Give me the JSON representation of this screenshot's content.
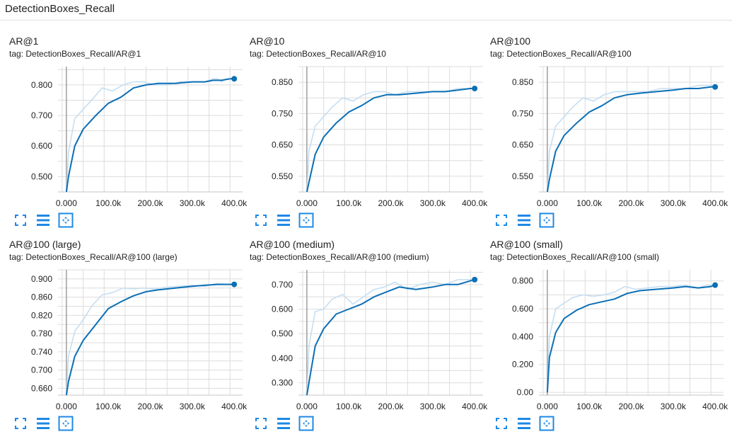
{
  "header": {
    "title": "DetectionBoxes_Recall"
  },
  "colors": {
    "smoothed": "#0b6fb5",
    "raw": "#c6def1",
    "grid": "#dcdcdc",
    "axis": "#9e9e9e",
    "button": "#1e88e5"
  },
  "icons": {
    "expand": "fullscreen-icon",
    "lines": "toggle-y-log-icon",
    "fit": "fit-domain-icon"
  },
  "chart_data": [
    {
      "type": "line",
      "title": "AR@1",
      "tag": "tag: DetectionBoxes_Recall/AR@1",
      "x_ticks": [
        0,
        100000,
        200000,
        300000,
        400000
      ],
      "x_tick_labels": [
        "0.000",
        "100.0k",
        "200.0k",
        "300.0k",
        "400.0k"
      ],
      "y_ticks": [
        0.5,
        0.6,
        0.7,
        0.8
      ],
      "y_tick_labels": [
        "0.500",
        "0.600",
        "0.700",
        "0.800"
      ],
      "xlim": [
        -20000,
        420000
      ],
      "ylim": [
        0.45,
        0.86
      ],
      "series": [
        {
          "x": [
            0,
            5000,
            20000,
            40000,
            60000,
            85000,
            110000,
            135000,
            160000,
            185000,
            210000,
            240000,
            270000,
            300000,
            330000,
            350000,
            360000,
            370000,
            380000,
            390000,
            400000
          ],
          "values": [
            0.45,
            0.58,
            0.69,
            0.72,
            0.75,
            0.79,
            0.78,
            0.8,
            0.81,
            0.81,
            0.8,
            0.8,
            0.81,
            0.81,
            0.81,
            0.82,
            0.82,
            0.81,
            0.82,
            0.82,
            0.82
          ]
        },
        {
          "x": [
            0,
            5000,
            20000,
            40000,
            70000,
            100000,
            130000,
            160000,
            190000,
            220000,
            260000,
            300000,
            330000,
            350000,
            370000,
            390000,
            400000
          ],
          "values": [
            0.45,
            0.5,
            0.6,
            0.655,
            0.7,
            0.74,
            0.76,
            0.79,
            0.8,
            0.805,
            0.805,
            0.81,
            0.81,
            0.815,
            0.815,
            0.82,
            0.82
          ]
        }
      ]
    },
    {
      "type": "line",
      "title": "AR@10",
      "tag": "tag: DetectionBoxes_Recall/AR@10",
      "x_ticks": [
        0,
        100000,
        200000,
        300000,
        400000
      ],
      "x_tick_labels": [
        "0.000",
        "100.0k",
        "200.0k",
        "300.0k",
        "400.0k"
      ],
      "y_ticks": [
        0.55,
        0.65,
        0.75,
        0.85
      ],
      "y_tick_labels": [
        "0.550",
        "0.650",
        "0.750",
        "0.850"
      ],
      "xlim": [
        -20000,
        420000
      ],
      "ylim": [
        0.5,
        0.9
      ],
      "series": [
        {
          "x": [
            0,
            5000,
            20000,
            40000,
            60000,
            85000,
            110000,
            135000,
            160000,
            185000,
            210000,
            240000,
            270000,
            300000,
            330000,
            360000,
            380000,
            400000
          ],
          "values": [
            0.5,
            0.63,
            0.71,
            0.74,
            0.77,
            0.8,
            0.79,
            0.81,
            0.82,
            0.82,
            0.81,
            0.82,
            0.82,
            0.82,
            0.82,
            0.83,
            0.83,
            0.83
          ]
        },
        {
          "x": [
            0,
            5000,
            20000,
            40000,
            70000,
            100000,
            130000,
            160000,
            190000,
            220000,
            260000,
            300000,
            330000,
            360000,
            390000,
            400000
          ],
          "values": [
            0.5,
            0.53,
            0.62,
            0.675,
            0.72,
            0.755,
            0.775,
            0.8,
            0.81,
            0.81,
            0.815,
            0.82,
            0.82,
            0.825,
            0.83,
            0.83
          ]
        }
      ]
    },
    {
      "type": "line",
      "title": "AR@100",
      "tag": "tag: DetectionBoxes_Recall/AR@100",
      "x_ticks": [
        0,
        100000,
        200000,
        300000,
        400000
      ],
      "x_tick_labels": [
        "0.000",
        "100.0k",
        "200.0k",
        "300.0k",
        "400.0k"
      ],
      "y_ticks": [
        0.55,
        0.65,
        0.75,
        0.85
      ],
      "y_tick_labels": [
        "0.550",
        "0.650",
        "0.750",
        "0.850"
      ],
      "xlim": [
        -20000,
        420000
      ],
      "ylim": [
        0.5,
        0.9
      ],
      "series": [
        {
          "x": [
            0,
            5000,
            20000,
            40000,
            60000,
            85000,
            110000,
            135000,
            160000,
            185000,
            210000,
            240000,
            270000,
            300000,
            330000,
            360000,
            380000,
            400000
          ],
          "values": [
            0.5,
            0.63,
            0.71,
            0.74,
            0.77,
            0.8,
            0.79,
            0.81,
            0.82,
            0.82,
            0.82,
            0.82,
            0.83,
            0.83,
            0.83,
            0.84,
            0.84,
            0.84
          ]
        },
        {
          "x": [
            0,
            5000,
            20000,
            40000,
            70000,
            100000,
            130000,
            160000,
            190000,
            220000,
            260000,
            300000,
            330000,
            360000,
            390000,
            400000
          ],
          "values": [
            0.5,
            0.54,
            0.63,
            0.68,
            0.72,
            0.755,
            0.775,
            0.8,
            0.81,
            0.815,
            0.82,
            0.825,
            0.83,
            0.83,
            0.835,
            0.835
          ]
        }
      ]
    },
    {
      "type": "line",
      "title": "AR@100 (large)",
      "tag": "tag: DetectionBoxes_Recall/AR@100 (large)",
      "x_ticks": [
        0,
        100000,
        200000,
        300000,
        400000
      ],
      "x_tick_labels": [
        "0.000",
        "100.0k",
        "200.0k",
        "300.0k",
        "400.0k"
      ],
      "y_ticks": [
        0.66,
        0.7,
        0.74,
        0.78,
        0.82,
        0.86,
        0.9
      ],
      "y_tick_labels": [
        "0.660",
        "0.700",
        "0.740",
        "0.780",
        "0.820",
        "0.860",
        "0.900"
      ],
      "xlim": [
        -20000,
        420000
      ],
      "ylim": [
        0.645,
        0.92
      ],
      "series": [
        {
          "x": [
            0,
            5000,
            20000,
            40000,
            60000,
            85000,
            110000,
            135000,
            160000,
            185000,
            210000,
            240000,
            270000,
            300000,
            330000,
            360000,
            380000,
            400000
          ],
          "values": [
            0.645,
            0.73,
            0.785,
            0.81,
            0.84,
            0.865,
            0.87,
            0.88,
            0.878,
            0.88,
            0.878,
            0.882,
            0.884,
            0.886,
            0.884,
            0.89,
            0.888,
            0.888
          ]
        },
        {
          "x": [
            0,
            5000,
            20000,
            40000,
            70000,
            100000,
            130000,
            160000,
            190000,
            220000,
            260000,
            300000,
            330000,
            360000,
            390000,
            400000
          ],
          "values": [
            0.645,
            0.675,
            0.73,
            0.765,
            0.8,
            0.835,
            0.85,
            0.863,
            0.872,
            0.876,
            0.88,
            0.884,
            0.886,
            0.888,
            0.888,
            0.888
          ]
        }
      ]
    },
    {
      "type": "line",
      "title": "AR@100 (medium)",
      "tag": "tag: DetectionBoxes_Recall/AR@100 (medium)",
      "x_ticks": [
        0,
        100000,
        200000,
        300000,
        400000
      ],
      "x_tick_labels": [
        "0.000",
        "100.0k",
        "200.0k",
        "300.0k",
        "400.0k"
      ],
      "y_ticks": [
        0.3,
        0.4,
        0.5,
        0.6,
        0.7
      ],
      "y_tick_labels": [
        "0.300",
        "0.400",
        "0.500",
        "0.600",
        "0.700"
      ],
      "xlim": [
        -20000,
        420000
      ],
      "ylim": [
        0.25,
        0.76
      ],
      "series": [
        {
          "x": [
            0,
            5000,
            20000,
            40000,
            60000,
            85000,
            110000,
            135000,
            160000,
            185000,
            210000,
            240000,
            270000,
            300000,
            330000,
            360000,
            380000,
            400000
          ],
          "values": [
            0.25,
            0.45,
            0.59,
            0.6,
            0.64,
            0.66,
            0.62,
            0.65,
            0.68,
            0.69,
            0.71,
            0.68,
            0.7,
            0.71,
            0.7,
            0.72,
            0.72,
            0.72
          ]
        },
        {
          "x": [
            0,
            5000,
            20000,
            40000,
            70000,
            100000,
            130000,
            160000,
            190000,
            220000,
            260000,
            300000,
            330000,
            360000,
            390000,
            400000
          ],
          "values": [
            0.25,
            0.3,
            0.45,
            0.52,
            0.58,
            0.6,
            0.62,
            0.65,
            0.67,
            0.69,
            0.68,
            0.69,
            0.7,
            0.7,
            0.715,
            0.72
          ]
        }
      ]
    },
    {
      "type": "line",
      "title": "AR@100 (small)",
      "tag": "tag: DetectionBoxes_Recall/AR@100 (small)",
      "x_ticks": [
        0,
        100000,
        200000,
        300000,
        400000
      ],
      "x_tick_labels": [
        "0.000",
        "100.0k",
        "200.0k",
        "300.0k",
        "400.0k"
      ],
      "y_ticks": [
        0,
        0.2,
        0.4,
        0.6,
        0.8
      ],
      "y_tick_labels": [
        "0.00",
        "0.200",
        "0.400",
        "0.600",
        "0.800"
      ],
      "xlim": [
        -20000,
        420000
      ],
      "ylim": [
        -0.02,
        0.88
      ],
      "series": [
        {
          "x": [
            0,
            5000,
            20000,
            40000,
            60000,
            85000,
            110000,
            135000,
            160000,
            185000,
            210000,
            240000,
            270000,
            300000,
            330000,
            360000,
            380000,
            400000
          ],
          "values": [
            0.0,
            0.4,
            0.6,
            0.64,
            0.68,
            0.7,
            0.69,
            0.7,
            0.72,
            0.76,
            0.74,
            0.75,
            0.76,
            0.76,
            0.77,
            0.75,
            0.77,
            0.77
          ]
        },
        {
          "x": [
            0,
            5000,
            20000,
            40000,
            70000,
            100000,
            130000,
            160000,
            190000,
            220000,
            260000,
            300000,
            330000,
            360000,
            390000,
            400000
          ],
          "values": [
            0.0,
            0.25,
            0.43,
            0.53,
            0.59,
            0.63,
            0.65,
            0.67,
            0.71,
            0.73,
            0.74,
            0.75,
            0.76,
            0.75,
            0.76,
            0.77
          ]
        }
      ]
    }
  ]
}
